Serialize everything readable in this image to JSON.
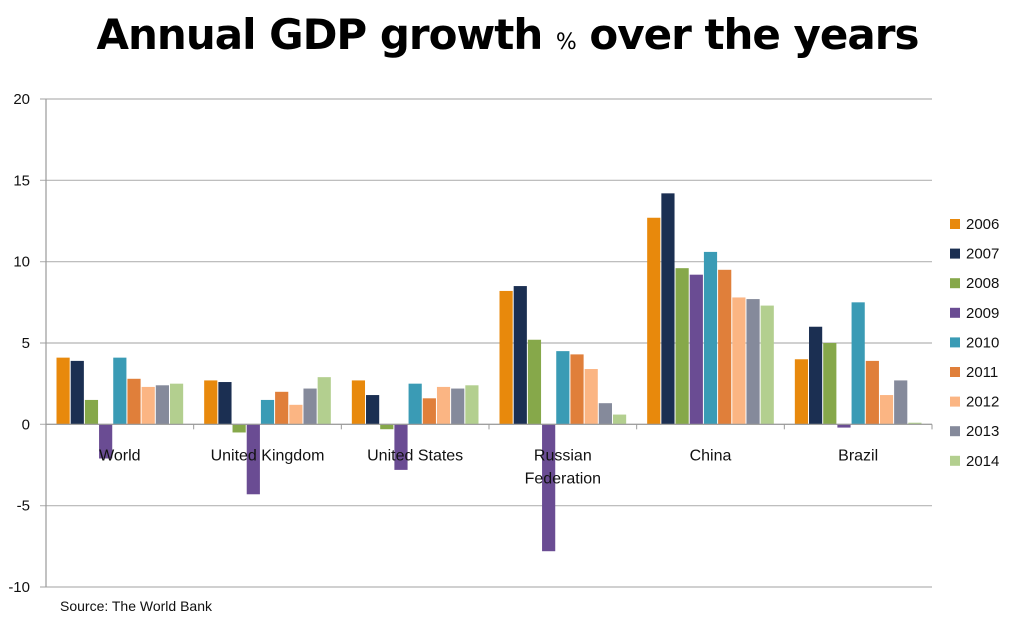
{
  "chart_data": {
    "type": "bar",
    "title": "Annual GDP growth",
    "title_pct": "%",
    "title_suffix": "over the years",
    "xlabel": "",
    "ylabel": "",
    "ylim": [
      -10,
      20
    ],
    "yticks": [
      20,
      15,
      10,
      5,
      0,
      -5,
      -10
    ],
    "grid": true,
    "legend_position": "right",
    "source": "Source: The World Bank",
    "categories": [
      "World",
      "United Kingdom",
      "United States",
      "Russian Federation",
      "China",
      "Brazil"
    ],
    "category_lines": [
      [
        "World"
      ],
      [
        "United Kingdom"
      ],
      [
        "United States"
      ],
      [
        "Russian",
        "Federation"
      ],
      [
        "China"
      ],
      [
        "Brazil"
      ]
    ],
    "series": [
      {
        "name": "2006",
        "color": "#e8890c",
        "values": [
          4.1,
          2.7,
          2.7,
          8.2,
          12.7,
          4.0
        ]
      },
      {
        "name": "2007",
        "color": "#1b2f52",
        "values": [
          3.9,
          2.6,
          1.8,
          8.5,
          14.2,
          6.0
        ]
      },
      {
        "name": "2008",
        "color": "#86a84a",
        "values": [
          1.5,
          -0.5,
          -0.3,
          5.2,
          9.6,
          5.0
        ]
      },
      {
        "name": "2009",
        "color": "#6a4c93",
        "values": [
          -2.1,
          -4.3,
          -2.8,
          -7.8,
          9.2,
          -0.2
        ]
      },
      {
        "name": "2010",
        "color": "#3a9bb5",
        "values": [
          4.1,
          1.5,
          2.5,
          4.5,
          10.6,
          7.5
        ]
      },
      {
        "name": "2011",
        "color": "#e07f3a",
        "values": [
          2.8,
          2.0,
          1.6,
          4.3,
          9.5,
          3.9
        ]
      },
      {
        "name": "2012",
        "color": "#fbb583",
        "values": [
          2.3,
          1.2,
          2.3,
          3.4,
          7.8,
          1.8
        ]
      },
      {
        "name": "2013",
        "color": "#858a9b",
        "values": [
          2.4,
          2.2,
          2.2,
          1.3,
          7.7,
          2.7
        ]
      },
      {
        "name": "2014",
        "color": "#b3cf8f",
        "values": [
          2.5,
          2.9,
          2.4,
          0.6,
          7.3,
          0.1
        ]
      }
    ]
  }
}
